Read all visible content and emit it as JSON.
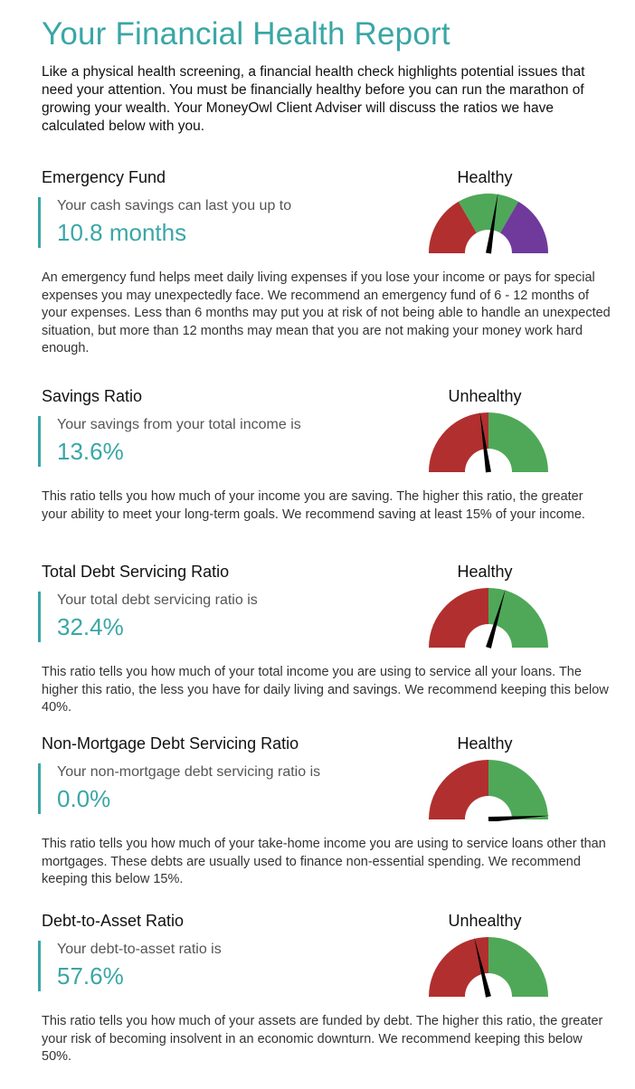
{
  "page": {
    "title": "Your Financial Health Report",
    "intro": "Like a physical health screening, a financial health check highlights potential issues that need your attention. You must be financially healthy before you can run the marathon of growing your wealth. Your MoneyOwl Client Adviser will discuss the ratios we have calculated below with you."
  },
  "colors": {
    "accent": "#3aa6a6",
    "red": "#b12f2f",
    "green": "#4fa858",
    "purple": "#6f3a9c"
  },
  "sections": [
    {
      "title": "Emergency Fund",
      "status": "Healthy",
      "label": "Your cash savings can last you up to",
      "value": "10.8 months",
      "description": "An emergency fund helps meet daily living expenses if you lose your income or pays for special expenses you may unexpectedly face. We recommend an emergency fund of 6 - 12 months of your expenses. Less than 6 months may put you at risk of not being able to handle an unexpected situation, but more than 12 months may mean that you are not making your money work hard enough.",
      "gauge": {
        "needle_fraction": 0.55,
        "zones": [
          {
            "from": 0,
            "to": 0.333,
            "color": "#b12f2f"
          },
          {
            "from": 0.333,
            "to": 0.667,
            "color": "#4fa858"
          },
          {
            "from": 0.667,
            "to": 1,
            "color": "#6f3a9c"
          }
        ]
      }
    },
    {
      "title": "Savings Ratio",
      "status": "Unhealthy",
      "label": "Your savings from your total income is",
      "value": "13.6%",
      "description": "This ratio tells you how much of your income you are saving. The higher this ratio, the greater your ability to meet your long-term goals. We recommend saving at least 15% of your income.",
      "gauge": {
        "needle_fraction": 0.455,
        "zones": [
          {
            "from": 0,
            "to": 0.5,
            "color": "#b12f2f"
          },
          {
            "from": 0.5,
            "to": 1,
            "color": "#4fa858"
          }
        ]
      }
    },
    {
      "title": "Total Debt Servicing Ratio",
      "status": "Healthy",
      "label": "Your total debt servicing ratio is",
      "value": "32.4%",
      "description": "This ratio tells you how much of your total income you are using to service all your loans. The higher this ratio, the less you have for daily living and savings. We recommend keeping this below 40%.",
      "gauge": {
        "needle_fraction": 0.59,
        "zones": [
          {
            "from": 0,
            "to": 0.5,
            "color": "#b12f2f"
          },
          {
            "from": 0.5,
            "to": 1,
            "color": "#4fa858"
          }
        ]
      }
    },
    {
      "title": "Non-Mortgage Debt Servicing Ratio",
      "status": "Healthy",
      "label": "Your non-mortgage debt servicing ratio is",
      "value": "0.0%",
      "description": "This ratio tells you how much of your take-home income you are using to service loans other than mortgages. These debts are usually used to finance non-essential spending. We recommend keeping this below 15%.",
      "gauge": {
        "needle_fraction": 0.98,
        "zones": [
          {
            "from": 0,
            "to": 0.5,
            "color": "#b12f2f"
          },
          {
            "from": 0.5,
            "to": 1,
            "color": "#4fa858"
          }
        ]
      }
    },
    {
      "title": "Debt-to-Asset Ratio",
      "status": "Unhealthy",
      "label": "Your debt-to-asset ratio is",
      "value": "57.6%",
      "description": "This ratio tells you how much of your assets are funded by debt. The higher this ratio, the greater your risk of becoming insolvent in an economic downturn. We recommend keeping this below 50%.",
      "gauge": {
        "needle_fraction": 0.425,
        "zones": [
          {
            "from": 0,
            "to": 0.5,
            "color": "#b12f2f"
          },
          {
            "from": 0.5,
            "to": 1,
            "color": "#4fa858"
          }
        ]
      }
    }
  ]
}
